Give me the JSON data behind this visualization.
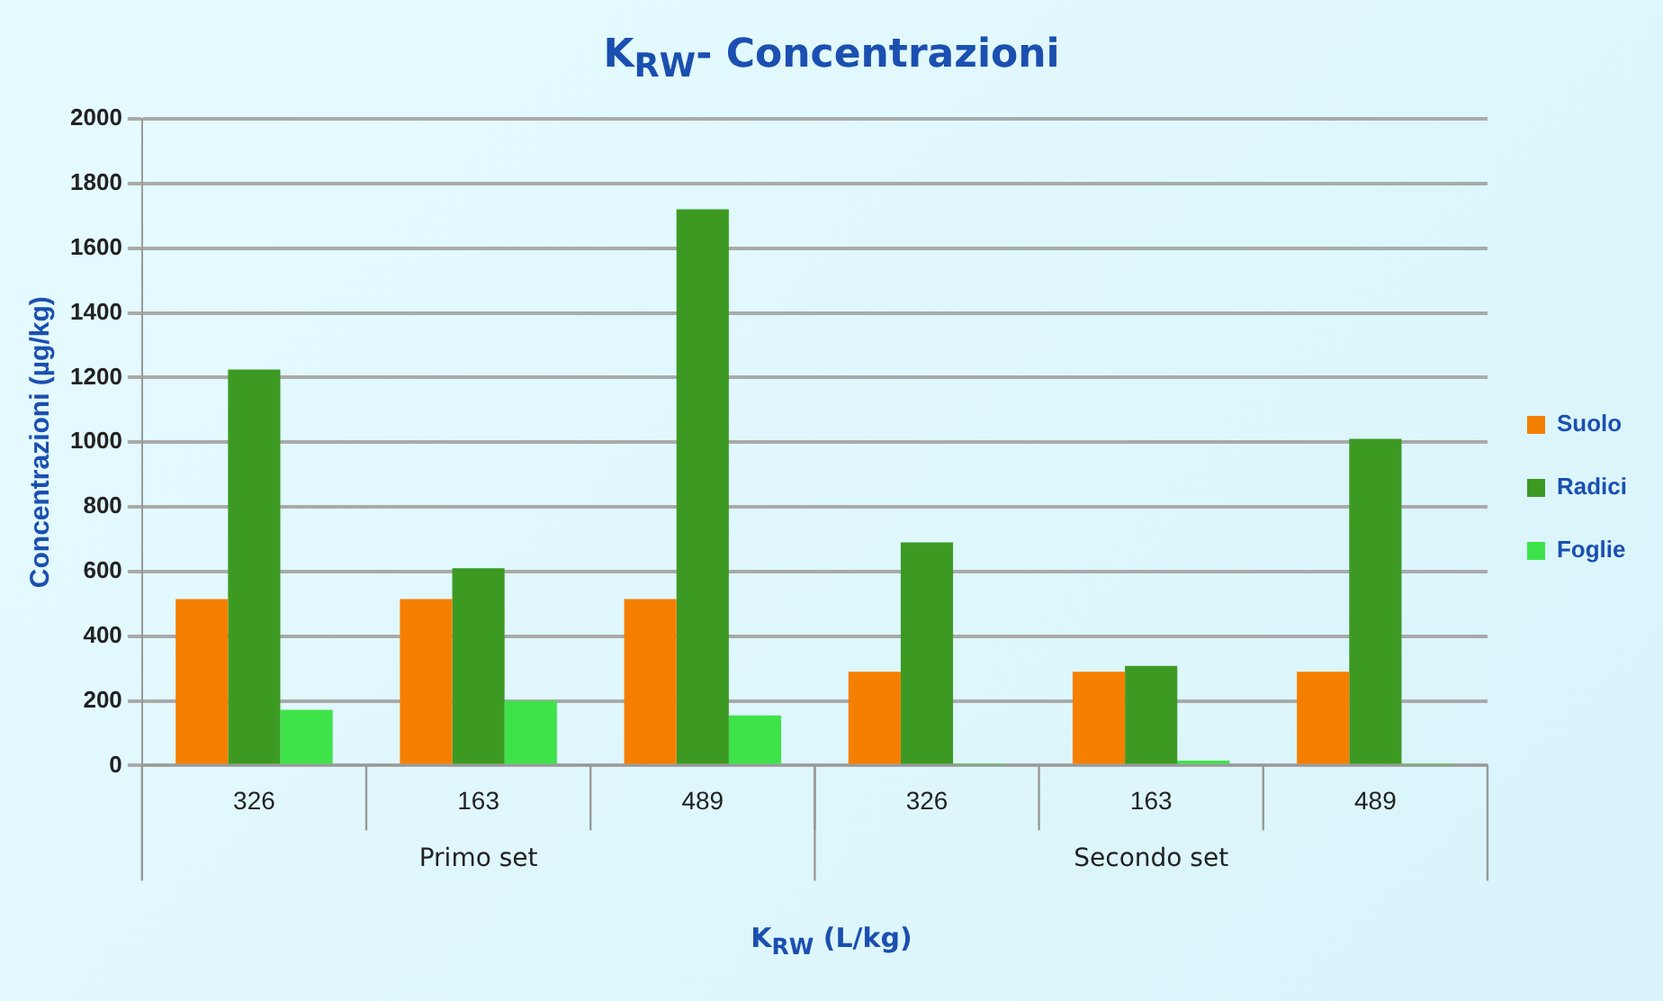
{
  "chart_data": {
    "type": "bar",
    "title": "K$_{RW}$- Concentrazioni",
    "xlabel": "K$_{RW}$  (L/kg)",
    "ylabel": "Concentrazioni (µg/kg)",
    "categories": [
      "326",
      "163",
      "489",
      "326",
      "163",
      "489"
    ],
    "annotations": [
      "Primo set",
      "Secondo set"
    ],
    "series": [
      {
        "name": "Suolo",
        "color": "#f57f00",
        "values": [
          515,
          515,
          515,
          290,
          290,
          290
        ]
      },
      {
        "name": "Radici",
        "color": "#3c9a23",
        "values": [
          1225,
          610,
          1720,
          690,
          308,
          1010
        ]
      },
      {
        "name": "Foglie",
        "color": "#3ee34a",
        "values": [
          172,
          200,
          155,
          3,
          15,
          3
        ]
      }
    ],
    "ylim": [
      0,
      2000
    ],
    "yticks": [
      0,
      200,
      400,
      600,
      800,
      1000,
      1200,
      1400,
      1600,
      1800,
      2000
    ],
    "grid": "y",
    "legend": "right"
  }
}
